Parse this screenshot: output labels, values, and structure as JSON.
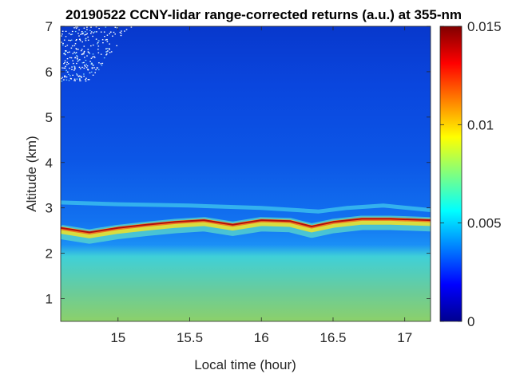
{
  "chart_data": {
    "type": "heatmap",
    "title": "20190522 CCNY-lidar range-corrected returns (a.u.) at 355-nm",
    "xlabel": "Local time (hour)",
    "ylabel": "Altitude (km)",
    "xlim": [
      14.6,
      17.18
    ],
    "ylim": [
      0.5,
      7
    ],
    "xticks": [
      15,
      15.5,
      16,
      16.5,
      17
    ],
    "xtick_labels": [
      "15",
      "15.5",
      "16",
      "16.5",
      "17"
    ],
    "yticks": [
      1,
      2,
      3,
      4,
      5,
      6,
      7
    ],
    "ytick_labels": [
      "1",
      "2",
      "3",
      "4",
      "5",
      "6",
      "7"
    ],
    "colorbar": {
      "colormap": "jet",
      "clim": [
        0,
        0.015
      ],
      "ticks": [
        0,
        0.005,
        0.01,
        0.015
      ],
      "tick_labels": [
        "0",
        "0.005",
        "0.01",
        "0.015"
      ],
      "location": "right"
    },
    "features": {
      "boundary_layer_top_km": [
        {
          "t": 14.6,
          "z": 2.55
        },
        {
          "t": 14.8,
          "z": 2.45
        },
        {
          "t": 15.0,
          "z": 2.55
        },
        {
          "t": 15.2,
          "z": 2.62
        },
        {
          "t": 15.4,
          "z": 2.68
        },
        {
          "t": 15.6,
          "z": 2.72
        },
        {
          "t": 15.8,
          "z": 2.62
        },
        {
          "t": 16.0,
          "z": 2.72
        },
        {
          "t": 16.2,
          "z": 2.7
        },
        {
          "t": 16.35,
          "z": 2.58
        },
        {
          "t": 16.5,
          "z": 2.68
        },
        {
          "t": 16.7,
          "z": 2.75
        },
        {
          "t": 16.9,
          "z": 2.75
        },
        {
          "t": 17.18,
          "z": 2.72
        }
      ],
      "upper_aerosol_layer_km": [
        {
          "t": 14.6,
          "z": 3.12
        },
        {
          "t": 15.0,
          "z": 3.08
        },
        {
          "t": 15.5,
          "z": 3.05
        },
        {
          "t": 16.0,
          "z": 3.0
        },
        {
          "t": 16.4,
          "z": 2.92
        },
        {
          "t": 16.6,
          "z": 3.0
        },
        {
          "t": 16.85,
          "z": 3.05
        },
        {
          "t": 17.18,
          "z": 2.95
        }
      ],
      "noise_region": {
        "start_altitude_km": 5.8,
        "end_time_hour": 15.1
      }
    }
  }
}
